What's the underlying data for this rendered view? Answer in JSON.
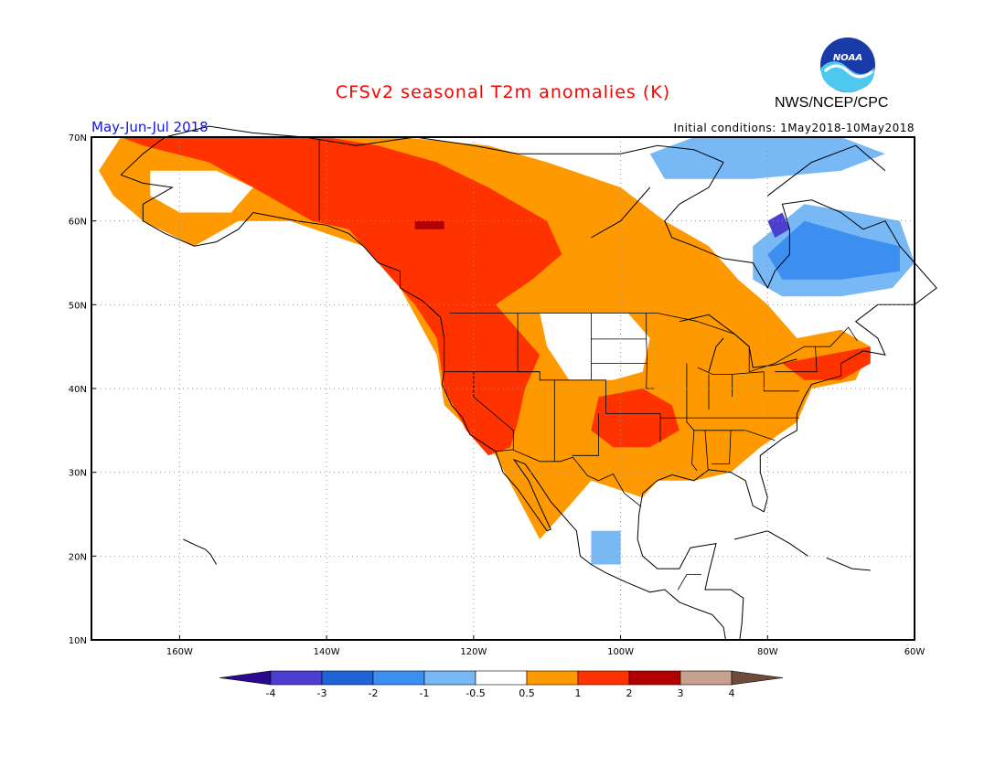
{
  "title": "CFSv2 seasonal T2m anomalies (K)",
  "agency": "NWS/NCEP/CPC",
  "season": "May-Jun-Jul 2018",
  "initial_conditions": "Initial conditions: 1May2018-10May2018",
  "logo_text": "NOAA",
  "map": {
    "lon_range": [
      -172,
      -60
    ],
    "lat_range": [
      10,
      70
    ],
    "lat_ticks": [
      "10N",
      "20N",
      "30N",
      "40N",
      "50N",
      "60N",
      "70N"
    ],
    "lon_ticks": [
      "160W",
      "140W",
      "120W",
      "100W",
      "80W",
      "60W"
    ]
  },
  "colorbar": {
    "colors": [
      "#2a0a8c",
      "#4c3fd0",
      "#1e64d6",
      "#3c8ef0",
      "#78b8f5",
      "#ffffff",
      "#ff9900",
      "#ff3300",
      "#b20000",
      "#c8a090",
      "#6e4b3a"
    ],
    "labels": [
      "-4",
      "-3",
      "-2",
      "-1",
      "-0.5",
      "0.5",
      "1",
      "2",
      "3",
      "4"
    ]
  },
  "anomaly_levels": {
    "warm_0.5_1": "#ff9900",
    "warm_1_2": "#ff3300",
    "warm_2_3": "#b20000",
    "cool_-0.5_-1": "#78b8f5",
    "cool_-1_-2": "#3c8ef0",
    "cool_-2_-3": "#1e64d6",
    "cool_-3_-4": "#4c3fd0"
  }
}
